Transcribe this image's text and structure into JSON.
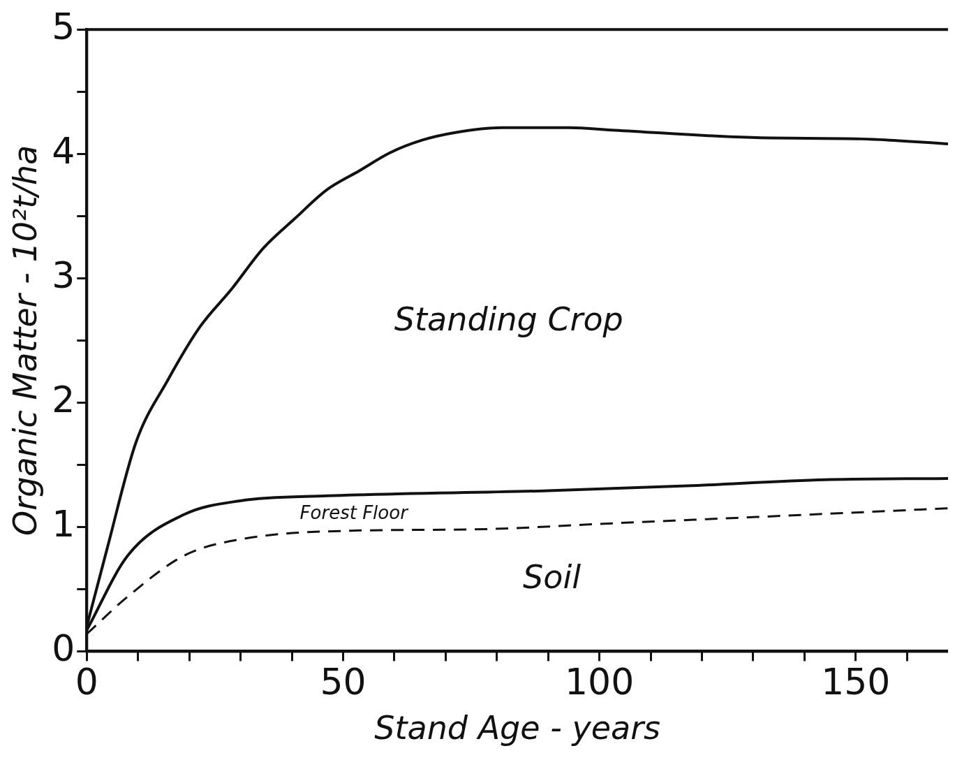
{
  "chart_data": {
    "type": "line",
    "xlabel": "Stand Age - years",
    "ylabel": "Organic Matter - 10²t/ha",
    "xlim": [
      0,
      168
    ],
    "xticks": [
      0,
      {
        "value": 10,
        "label": null
      },
      {
        "value": 20,
        "label": null
      },
      {
        "value": 30,
        "label": null
      },
      {
        "value": 40,
        "label": null
      },
      50,
      {
        "value": 60,
        "label": null
      },
      {
        "value": 70,
        "label": null
      },
      {
        "value": 80,
        "label": null
      },
      {
        "value": 90,
        "label": null
      },
      100,
      {
        "value": 110,
        "label": null
      },
      {
        "value": 120,
        "label": null
      },
      {
        "value": 130,
        "label": null
      },
      {
        "value": 140,
        "label": null
      },
      150,
      {
        "value": 160,
        "label": null
      }
    ],
    "ylim": [
      0,
      5
    ],
    "yticks": [
      0,
      {
        "value": 0.5,
        "label": null
      },
      1,
      {
        "value": 1.5,
        "label": null
      },
      2,
      {
        "value": 2.5,
        "label": null
      },
      3,
      {
        "value": 3.5,
        "label": null
      },
      4,
      {
        "value": 4.5,
        "label": null
      },
      5
    ],
    "grid": false,
    "legend": false,
    "marker": "none",
    "series": [
      {
        "color": "#111111",
        "line_style": "solid",
        "x": [
          0,
          4,
          9.6,
          15.8,
          22.1,
          28.2,
          34.4,
          40.6,
          46.8,
          53,
          59.2,
          65.4,
          71.7,
          81,
          94,
          103,
          130.6,
          151,
          168
        ],
        "values": [
          0.2,
          0.83,
          1.68,
          2.18,
          2.61,
          2.91,
          3.24,
          3.48,
          3.71,
          3.86,
          4.01,
          4.11,
          4.17,
          4.21,
          4.21,
          4.19,
          4.13,
          4.12,
          4.08
        ]
      },
      {
        "color": "#111111",
        "line_style": "solid",
        "x": [
          0,
          8,
          19,
          29.9,
          47,
          89,
          117,
          144,
          168
        ],
        "values": [
          0.17,
          0.77,
          1.1,
          1.21,
          1.25,
          1.29,
          1.33,
          1.38,
          1.39
        ]
      },
      {
        "color": "#111111",
        "line_style": "dashed",
        "x": [
          0,
          8,
          19,
          29.9,
          51.7,
          75,
          103,
          130.6,
          168
        ],
        "values": [
          0.14,
          0.44,
          0.77,
          0.9,
          0.97,
          0.98,
          1.03,
          1.08,
          1.15
        ]
      }
    ],
    "annotations": [
      "Standing Crop",
      "Forest Floor",
      "Soil"
    ]
  }
}
